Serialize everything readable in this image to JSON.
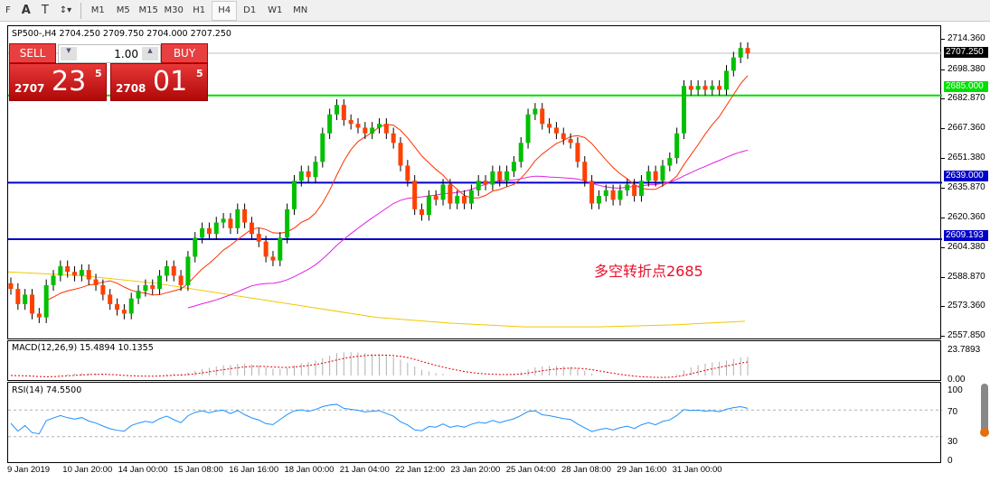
{
  "toolbar": {
    "tools": [
      "F",
      "A",
      "T",
      "↕▾"
    ],
    "timeframes": [
      "M1",
      "M5",
      "M15",
      "M30",
      "H1",
      "H4",
      "D1",
      "W1",
      "MN"
    ],
    "active": "H4"
  },
  "chart": {
    "title": "SP500-,H4  2704.250 2709.750 2704.000 2707.250",
    "price_labels": [
      "2714.360",
      "2698.380",
      "2682.870",
      "2667.360",
      "2651.380",
      "2635.870",
      "2620.360",
      "2604.380",
      "2588.870",
      "2573.360",
      "2557.850"
    ],
    "price_values": [
      2714.36,
      2698.38,
      2682.87,
      2667.36,
      2651.38,
      2635.87,
      2620.36,
      2604.38,
      2588.87,
      2573.36,
      2557.85
    ],
    "current_price": "2707.250",
    "hlines": [
      {
        "label": "2685.000",
        "value": 2685,
        "color": "#00e000"
      },
      {
        "label": "2639.000",
        "value": 2639,
        "color": "#0000c8"
      },
      {
        "label": "2609.193",
        "value": 2609.193,
        "color": "#0000c8"
      }
    ],
    "annotation": "多空转折点2685",
    "closes": [
      2583,
      2575,
      2580,
      2570,
      2568,
      2585,
      2590,
      2595,
      2592,
      2590,
      2593,
      2588,
      2585,
      2580,
      2575,
      2572,
      2570,
      2578,
      2582,
      2585,
      2583,
      2590,
      2595,
      2590,
      2585,
      2600,
      2610,
      2615,
      2612,
      2618,
      2620,
      2615,
      2625,
      2618,
      2612,
      2608,
      2600,
      2598,
      2610,
      2625,
      2640,
      2645,
      2642,
      2650,
      2665,
      2675,
      2680,
      2672,
      2670,
      2668,
      2665,
      2668,
      2670,
      2665,
      2660,
      2648,
      2640,
      2625,
      2622,
      2632,
      2630,
      2638,
      2628,
      2632,
      2628,
      2635,
      2640,
      2638,
      2645,
      2640,
      2645,
      2650,
      2660,
      2675,
      2678,
      2670,
      2668,
      2665,
      2662,
      2660,
      2650,
      2640,
      2628,
      2632,
      2635,
      2630,
      2635,
      2638,
      2632,
      2640,
      2645,
      2640,
      2648,
      2652,
      2665,
      2690,
      2688,
      2690,
      2688,
      2690,
      2688,
      2698,
      2705,
      2710,
      2707.25
    ],
    "slow_ma": [
      2592,
      2590,
      2586,
      2580,
      2574,
      2568,
      2565,
      2563,
      2563,
      2564,
      2566
    ],
    "up_color": "#00c000",
    "down_color": "#ff4000"
  },
  "trade": {
    "sell": "SELL",
    "buy": "BUY",
    "lot": "1.00",
    "sell_small": "2707",
    "sell_large": "23",
    "sell_sup": "5",
    "buy_small": "2708",
    "buy_large": "01",
    "buy_sup": "5"
  },
  "macd": {
    "title": "MACD(12,26,9) 15.4894 10.1355",
    "labels": [
      "23.7893",
      "0.00"
    ]
  },
  "rsi": {
    "title": "RSI(14) 74.5500",
    "labels": [
      "100",
      "70",
      "30",
      "0"
    ],
    "levels": [
      70,
      30
    ]
  },
  "time_labels": [
    "9 Jan 2019",
    "10 Jan 20:00",
    "14 Jan 00:00",
    "15 Jan 08:00",
    "16 Jan 16:00",
    "18 Jan 00:00",
    "21 Jan 04:00",
    "22 Jan 12:00",
    "23 Jan 20:00",
    "25 Jan 04:00",
    "28 Jan 08:00",
    "29 Jan 16:00",
    "31 Jan 00:00"
  ]
}
